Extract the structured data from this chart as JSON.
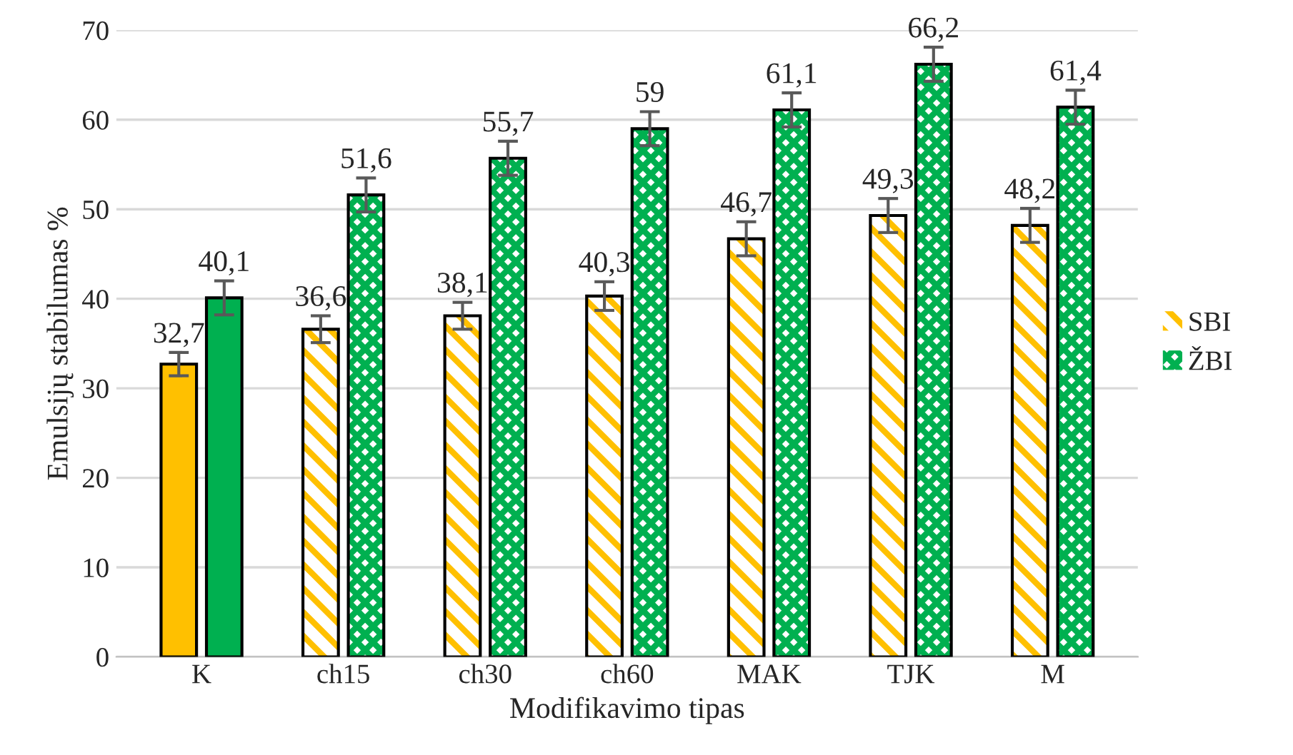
{
  "chart_data": {
    "type": "bar",
    "xlabel": "Modifikavimo tipas",
    "ylabel": "Emulsijų stabilumas %",
    "categories": [
      "K",
      "ch15",
      "ch30",
      "ch60",
      "MAK",
      "TJK",
      "M"
    ],
    "series": [
      {
        "name": "SBI",
        "color": "#ffc000",
        "values": [
          32.7,
          36.6,
          38.1,
          40.3,
          46.7,
          49.3,
          48.2
        ],
        "errors": [
          1.3,
          1.5,
          1.5,
          1.6,
          1.9,
          1.9,
          1.9
        ],
        "value_labels": [
          "32,7",
          "36,6",
          "38,1",
          "40,3",
          "46,7",
          "49,3",
          "48,2"
        ]
      },
      {
        "name": "ŽBI",
        "color": "#00b050",
        "values": [
          40.1,
          51.6,
          55.7,
          59,
          61.1,
          66.2,
          61.4
        ],
        "errors": [
          1.9,
          1.9,
          1.9,
          1.9,
          1.9,
          1.9,
          1.9
        ],
        "value_labels": [
          "40,1",
          "51,6",
          "55,7",
          "59",
          "61,1",
          "66,2",
          "61,4"
        ]
      }
    ],
    "ylim": [
      0,
      70
    ],
    "yticks": [
      0,
      10,
      20,
      30,
      40,
      50,
      60,
      70
    ],
    "grid": "y",
    "legend": "right"
  }
}
